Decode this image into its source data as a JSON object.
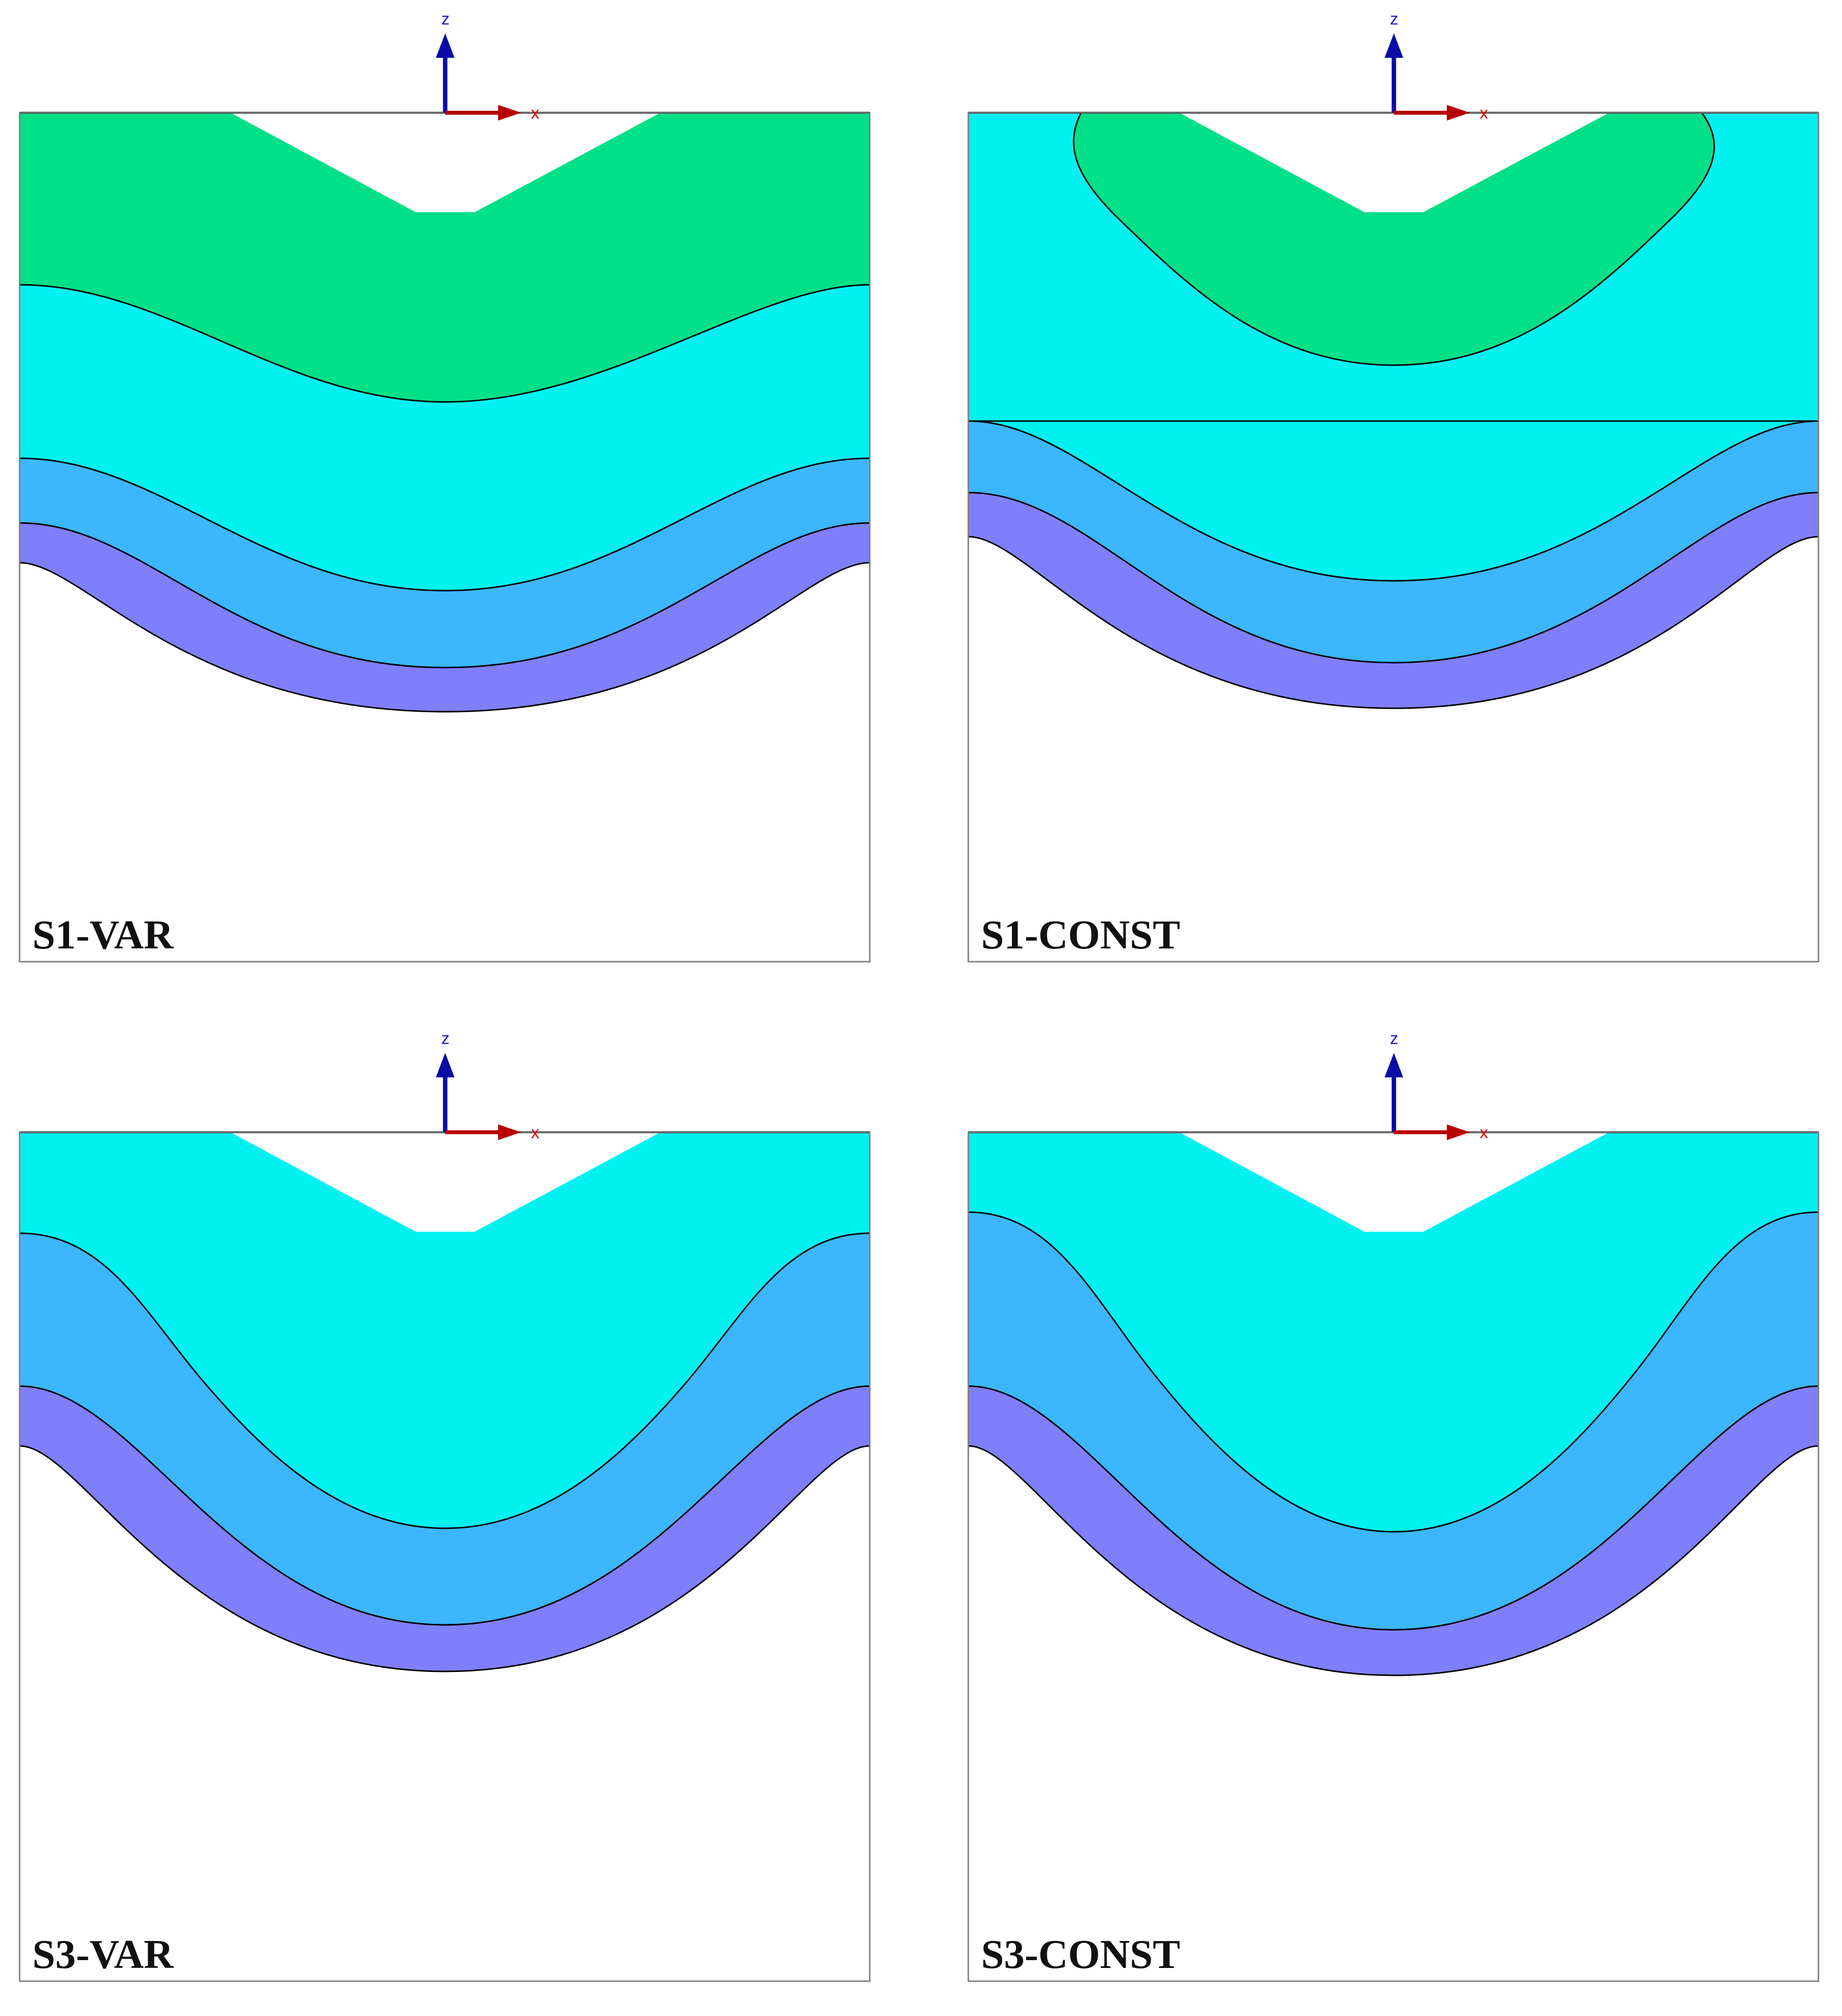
{
  "colors": {
    "green": "#00e088",
    "cyan": "#00f2f0",
    "light_blue": "#3cb7ff",
    "purple": "#7f7ffc",
    "axis_z": "#0a0aa6",
    "axis_x": "#b80000",
    "label_z": "#1a1ad9",
    "label_x": "#e00000"
  },
  "axes": {
    "z_label": "z",
    "x_label": "x"
  },
  "panels": [
    {
      "id": "s1-var",
      "label": "S1-VAR"
    },
    {
      "id": "s1-const",
      "label": "S1-CONST"
    },
    {
      "id": "s3-var",
      "label": "S3-VAR"
    },
    {
      "id": "s3-const",
      "label": "S3-CONST"
    }
  ]
}
